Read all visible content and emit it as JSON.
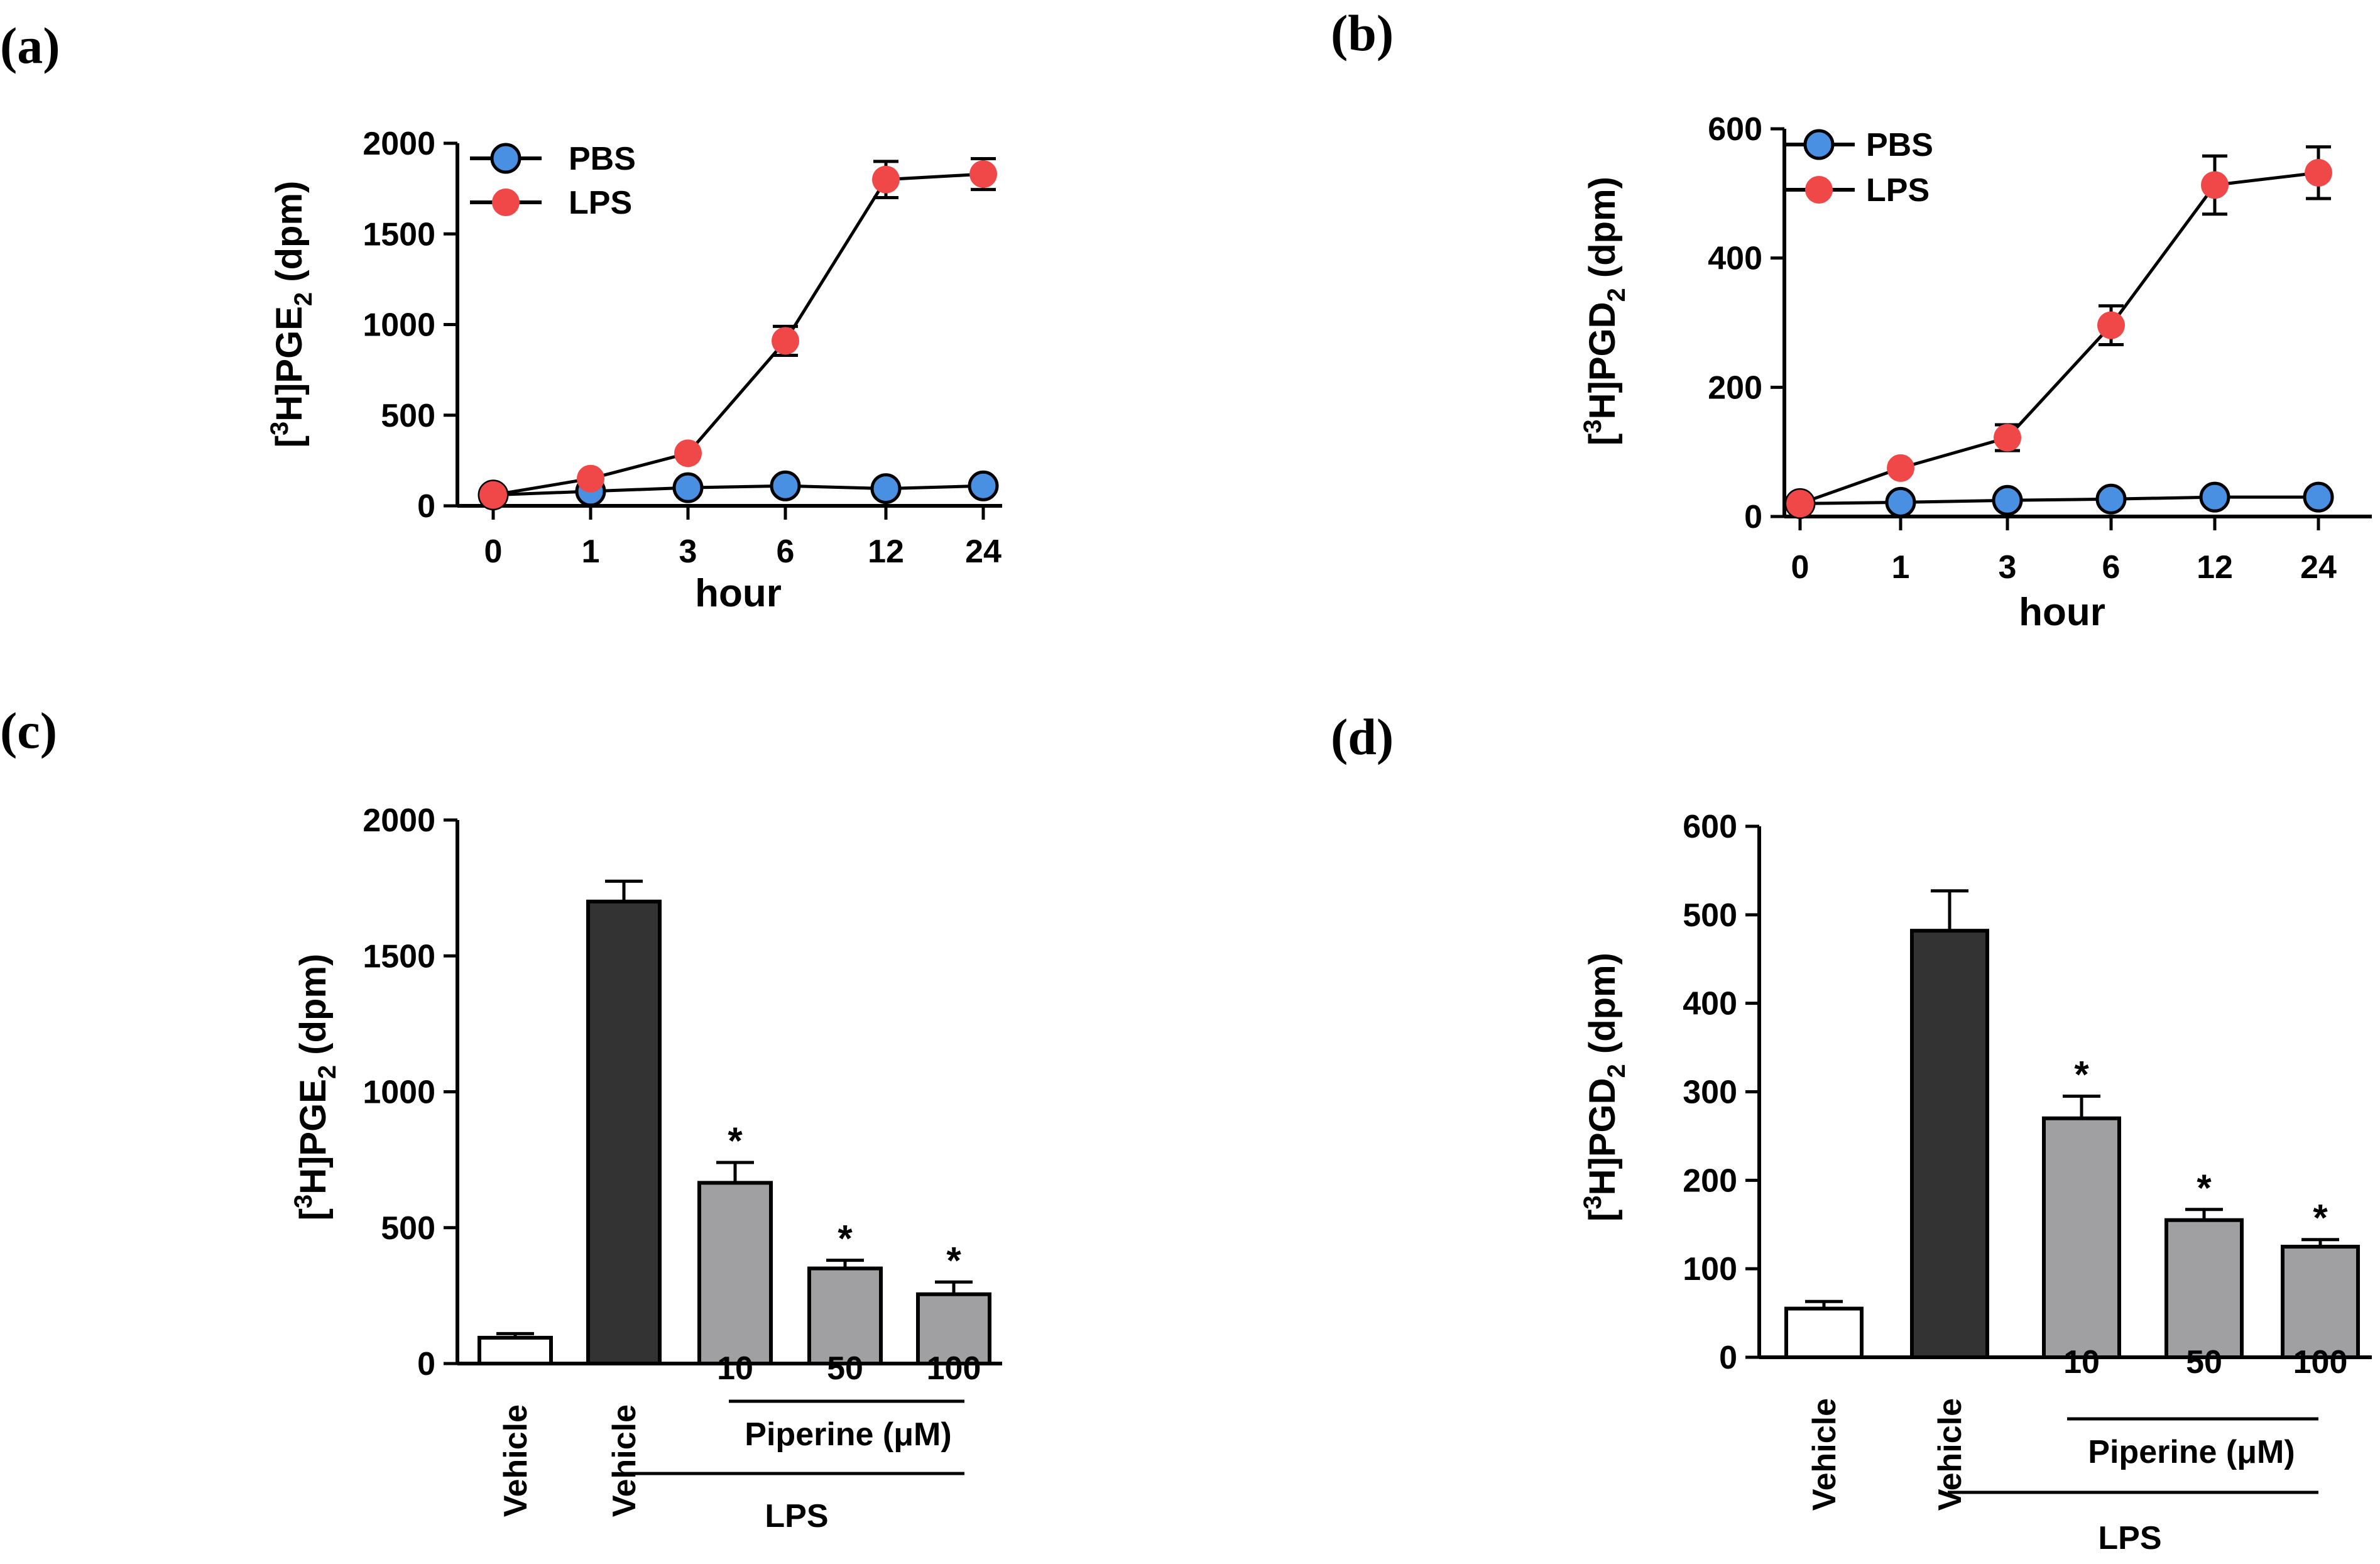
{
  "chart_data": [
    {
      "panel": "(a)",
      "type": "line",
      "ylabel": {
        "pre": "[",
        "sup": "3",
        "main": "H]PGE",
        "sub": "2",
        "post": " (dpm)"
      },
      "xlabel": "hour",
      "categories": [
        "0",
        "1",
        "3",
        "6",
        "12",
        "24"
      ],
      "ylim": [
        0,
        2000
      ],
      "yticks": [
        "0",
        "500",
        "1000",
        "1500",
        "2000"
      ],
      "series": [
        {
          "name": "PBS",
          "color": "#4a90e2",
          "values": [
            60,
            80,
            100,
            110,
            95,
            110
          ],
          "errors": [
            0,
            0,
            0,
            0,
            0,
            0
          ]
        },
        {
          "name": "LPS",
          "color": "#f04848",
          "values": [
            60,
            150,
            290,
            910,
            1800,
            1830
          ],
          "errors": [
            0,
            0,
            0,
            80,
            100,
            85
          ]
        }
      ]
    },
    {
      "panel": "(b)",
      "type": "line",
      "ylabel": {
        "pre": "[",
        "sup": "3",
        "main": "H]PGD",
        "sub": "2",
        "post": " (dpm)"
      },
      "xlabel": "hour",
      "categories": [
        "0",
        "1",
        "3",
        "6",
        "12",
        "24"
      ],
      "ylim": [
        0,
        600
      ],
      "yticks": [
        "0",
        "200",
        "400",
        "600"
      ],
      "series": [
        {
          "name": "PBS",
          "color": "#4a90e2",
          "values": [
            20,
            22,
            25,
            27,
            30,
            30
          ],
          "errors": [
            0,
            0,
            0,
            0,
            0,
            0
          ]
        },
        {
          "name": "LPS",
          "color": "#f04848",
          "values": [
            20,
            75,
            122,
            296,
            513,
            532
          ],
          "errors": [
            0,
            0,
            20,
            30,
            45,
            40
          ]
        }
      ]
    },
    {
      "panel": "(c)",
      "type": "bar",
      "ylabel": {
        "pre": "[",
        "sup": "3",
        "main": "H]PGE",
        "sub": "2",
        "post": " (dpm)"
      },
      "categories": [
        "Vehicle",
        "Vehicle",
        "10",
        "50",
        "100"
      ],
      "ylim": [
        0,
        2000
      ],
      "yticks": [
        "0",
        "500",
        "1000",
        "1500",
        "2000"
      ],
      "values": [
        95,
        1700,
        665,
        350,
        255
      ],
      "errors": [
        15,
        75,
        75,
        30,
        45
      ],
      "colors": [
        "#ffffff",
        "#333333",
        "#a0a0a3",
        "#a0a0a3",
        "#a0a0a3"
      ],
      "significance": [
        "",
        "",
        "*",
        "*",
        "*"
      ],
      "group_labels": {
        "piperine": "Piperine (μM)",
        "lps": "LPS"
      }
    },
    {
      "panel": "(d)",
      "type": "bar",
      "ylabel": {
        "pre": "[",
        "sup": "3",
        "main": "H]PGD",
        "sub": "2",
        "post": " (dpm)"
      },
      "categories": [
        "Vehicle",
        "Vehicle",
        "10",
        "50",
        "100"
      ],
      "ylim": [
        0,
        600
      ],
      "yticks": [
        "0",
        "100",
        "200",
        "300",
        "400",
        "500",
        "600"
      ],
      "values": [
        55,
        482,
        270,
        155,
        125
      ],
      "errors": [
        8,
        45,
        25,
        12,
        8
      ],
      "colors": [
        "#ffffff",
        "#333333",
        "#a0a0a3",
        "#a0a0a3",
        "#a0a0a3"
      ],
      "significance": [
        "",
        "",
        "*",
        "*",
        "*"
      ],
      "group_labels": {
        "piperine": "Piperine (μM)",
        "lps": "LPS"
      }
    }
  ]
}
